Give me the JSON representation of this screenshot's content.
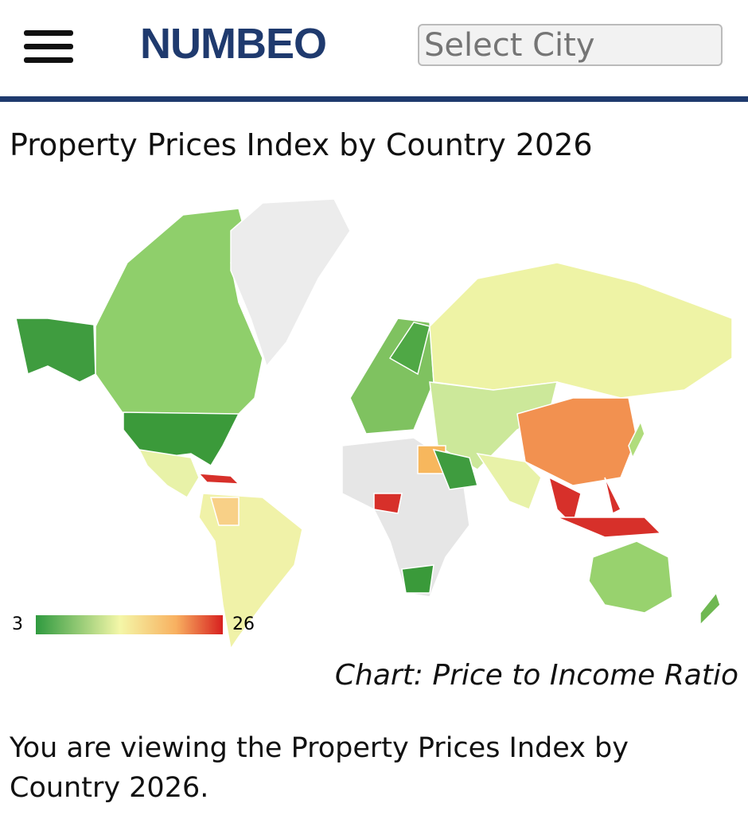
{
  "header": {
    "logo": "NUMBEO",
    "search_placeholder": "Select City"
  },
  "page": {
    "title": "Property Prices Index by Country 2026",
    "map": {
      "legend_min": 3,
      "legend_max": 26,
      "caption": "Chart: Price to Income Ratio"
    },
    "intro": "You are viewing the Property Prices Index by Country 2026."
  }
}
